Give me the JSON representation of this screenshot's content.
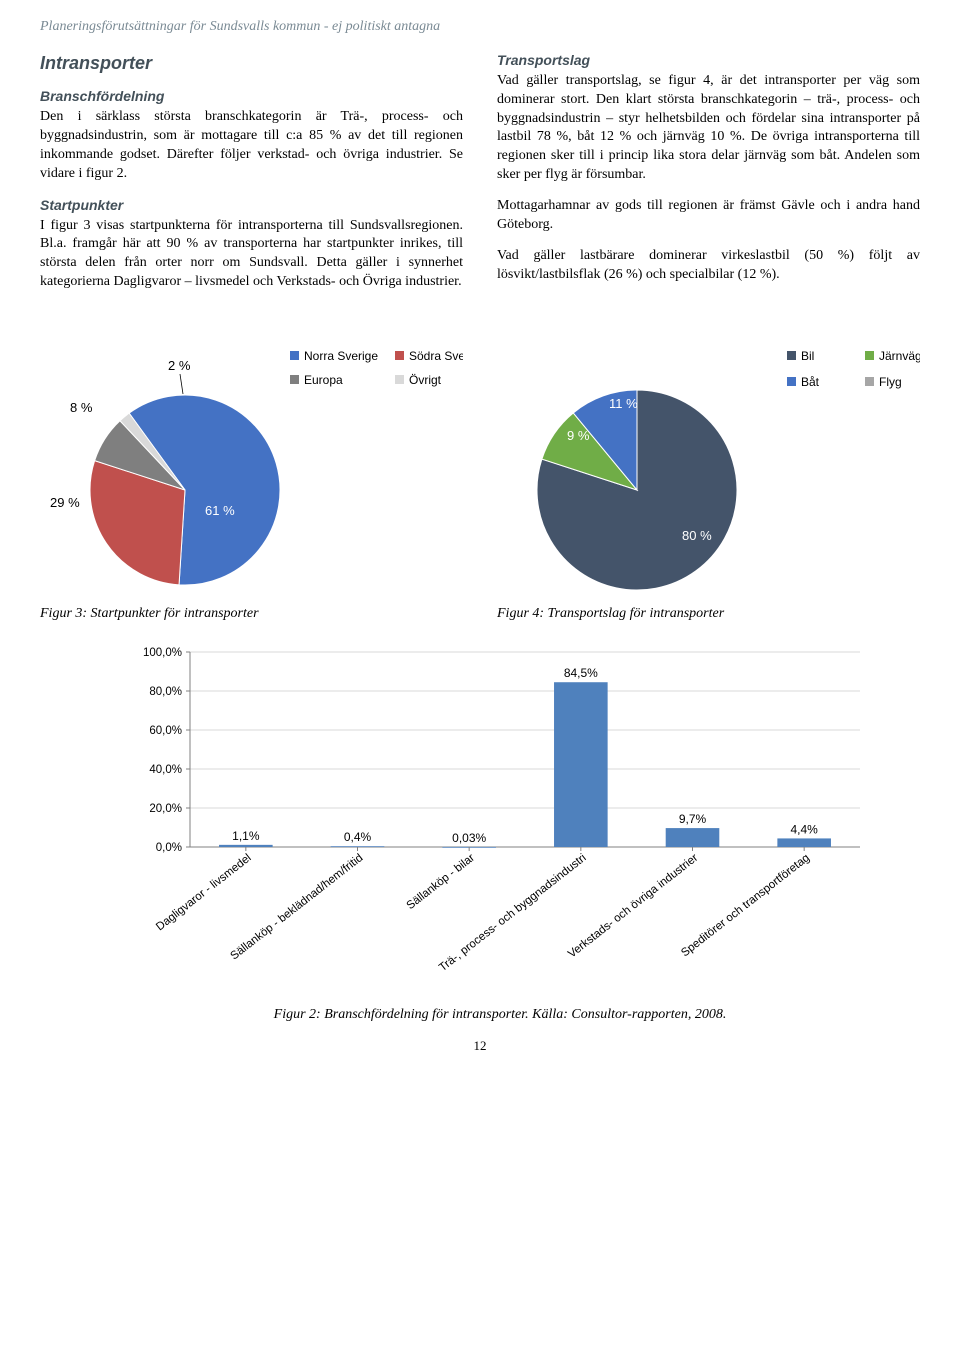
{
  "header": "Planeringsförutsättningar för Sundsvalls kommun - ej politiskt antagna",
  "left": {
    "title": "Intransporter",
    "h1": "Branschfördelning",
    "p1": "Den i särklass största branschkategorin är Trä-, process- och byggnadsindustrin, som är mottagare till c:a 85 % av det till regionen inkommande godset. Därefter följer verkstad- och övriga industrier. Se vidare i figur 2.",
    "h2": "Startpunkter",
    "p2": "I figur 3 visas startpunkterna för intransporterna till Sundsvallsregionen. Bl.a. framgår här att 90 % av transporterna har startpunkter inrikes, till största delen från orter norr om Sundsvall. Detta gäller i synnerhet kategorierna Dagligvaror – livsmedel och Verkstads- och Övriga industrier."
  },
  "right": {
    "h1": "Transportslag",
    "p1": "Vad gäller transportslag, se figur 4, är det intransporter per väg som dominerar stort. Den klart största branschkategorin – trä-, process- och byggnadsindustrin – styr helhetsbilden och fördelar sina intransporter på lastbil 78 %, båt 12 % och järnväg 10 %. De övriga intransporterna till regionen sker till i princip lika stora delar järnväg som båt. Andelen som sker per flyg är försumbar.",
    "p2": "Mottagarhamnar av gods till regionen är främst Gävle och i andra hand Göteborg.",
    "p3": "Vad gäller lastbärare dominerar virkeslastbil (50 %) följt av lösvikt/lastbilsflak (26 %) och specialbilar (12 %)."
  },
  "pie1": {
    "type": "pie",
    "legend": [
      {
        "label": "Norra Sverige",
        "color": "#4472c4"
      },
      {
        "label": "Södra Sverige",
        "color": "#c0504d"
      },
      {
        "label": "Europa",
        "color": "#7f7f7f"
      },
      {
        "label": "Övrigt",
        "color": "#d9d9d9"
      }
    ],
    "slices": [
      {
        "label": "61 %",
        "value": 61,
        "color": "#4472c4"
      },
      {
        "label": "29 %",
        "value": 29,
        "color": "#c0504d"
      },
      {
        "label": "8 %",
        "value": 8,
        "color": "#7f7f7f"
      },
      {
        "label": "2 %",
        "value": 2,
        "color": "#d9d9d9"
      }
    ],
    "caption": "Figur 3: Startpunkter för intransporter"
  },
  "pie2": {
    "type": "pie",
    "legend": [
      {
        "label": "Bil",
        "color": "#44546a"
      },
      {
        "label": "Järnväg",
        "color": "#70ad47"
      },
      {
        "label": "Båt",
        "color": "#4472c4"
      },
      {
        "label": "Flyg",
        "color": "#a6a6a6"
      }
    ],
    "slices": [
      {
        "label": "80 %",
        "value": 80,
        "color": "#44546a"
      },
      {
        "label": "9 %",
        "value": 9,
        "color": "#70ad47"
      },
      {
        "label": "11 %",
        "value": 11,
        "color": "#4472c4"
      }
    ],
    "caption": "Figur 4: Transportslag för intransporter"
  },
  "bar": {
    "type": "bar",
    "ylim": [
      0,
      100
    ],
    "ytick_step": 20,
    "grid_color": "#d9d9d9",
    "axis_color": "#808080",
    "bar_color": "#4f81bd",
    "bars": [
      {
        "label": "Dagligvaror - livsmedel",
        "value": 1.1,
        "display": "1,1%"
      },
      {
        "label": "Sällanköp - beklädnad/hem/fritid",
        "value": 0.4,
        "display": "0,4%"
      },
      {
        "label": "Sällanköp - bilar",
        "value": 0.03,
        "display": "0,03%"
      },
      {
        "label": "Trä-, process- och byggnadsindustri",
        "value": 84.5,
        "display": "84,5%"
      },
      {
        "label": "Verkstads- och övriga industrier",
        "value": 9.7,
        "display": "9,7%"
      },
      {
        "label": "Speditörer och transportföretag",
        "value": 4.4,
        "display": "4,4%"
      }
    ],
    "yticks": [
      "0,0%",
      "20,0%",
      "40,0%",
      "60,0%",
      "80,0%",
      "100,0%"
    ],
    "caption": "Figur 2: Branschfördelning för intransporter. Källa: Consultor-rapporten, 2008."
  },
  "page": "12"
}
